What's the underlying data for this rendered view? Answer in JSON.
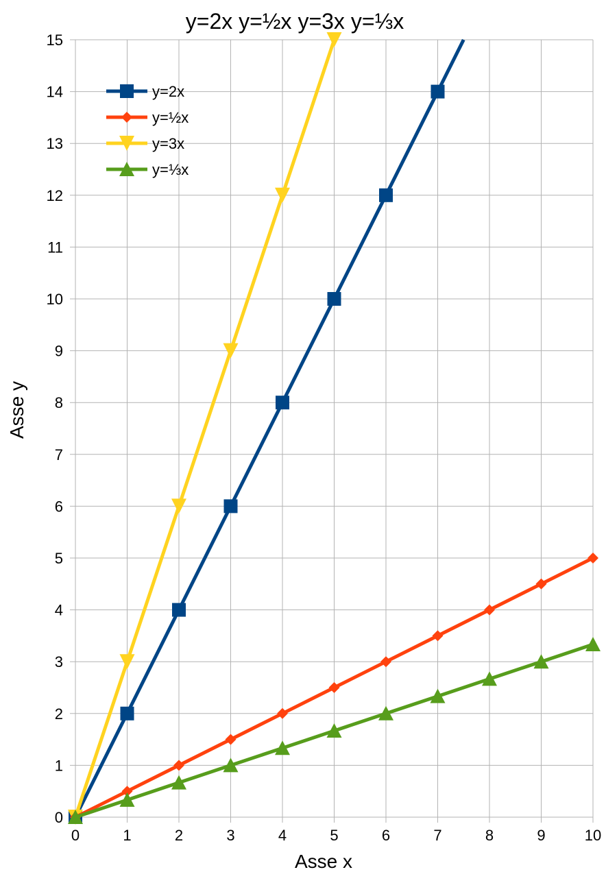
{
  "chart_data": {
    "type": "line",
    "title": "y=2x  y=½x  y=3x  y=⅓x",
    "xlabel": "Asse x",
    "ylabel": "Asse y",
    "xlim": [
      0,
      10
    ],
    "ylim": [
      0,
      15
    ],
    "x_ticks": [
      "0",
      "1",
      "2",
      "3",
      "4",
      "5",
      "6",
      "7",
      "8",
      "9",
      "10"
    ],
    "y_ticks": [
      "0",
      "1",
      "2",
      "3",
      "4",
      "5",
      "6",
      "7",
      "8",
      "9",
      "10",
      "11",
      "12",
      "13",
      "14",
      "15"
    ],
    "grid": true,
    "legend_position": "top-left",
    "series": [
      {
        "name": "y=2x",
        "color": "#004586",
        "marker": "square",
        "x": [
          0,
          1,
          2,
          3,
          4,
          5,
          6,
          7,
          7.5
        ],
        "y": [
          0,
          2,
          4,
          6,
          8,
          10,
          12,
          14,
          15
        ]
      },
      {
        "name": "y=½x",
        "color": "#ff420e",
        "marker": "diamond",
        "x": [
          0,
          1,
          2,
          3,
          4,
          5,
          6,
          7,
          8,
          9,
          10
        ],
        "y": [
          0,
          0.5,
          1,
          1.5,
          2,
          2.5,
          3,
          3.5,
          4,
          4.5,
          5
        ]
      },
      {
        "name": "y=3x",
        "color": "#ffd320",
        "marker": "triangle-down",
        "x": [
          0,
          1,
          2,
          3,
          4,
          5
        ],
        "y": [
          0,
          3,
          6,
          9,
          12,
          15
        ]
      },
      {
        "name": "y=⅓x",
        "color": "#579d1c",
        "marker": "triangle-up",
        "x": [
          0,
          1,
          2,
          3,
          4,
          5,
          6,
          7,
          8,
          9,
          10
        ],
        "y": [
          0,
          0.333,
          0.667,
          1,
          1.333,
          1.667,
          2,
          2.333,
          2.667,
          3,
          3.333
        ]
      }
    ]
  }
}
